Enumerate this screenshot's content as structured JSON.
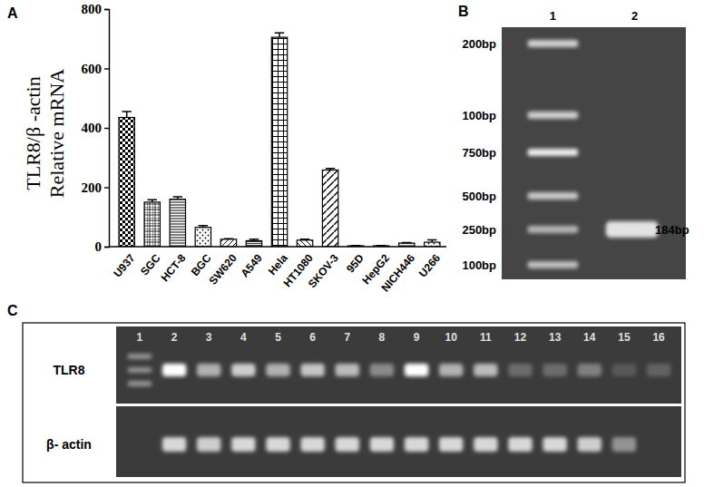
{
  "chart_data": {
    "type": "bar",
    "panel_label": "A",
    "y_label_lines": [
      "TLR8/β -actin",
      "Relative mRNA"
    ],
    "categories": [
      "U937",
      "SGC",
      "HCT-8",
      "BGC",
      "SW620",
      "A549",
      "Hela",
      "HT1080",
      "SKOV-3",
      "95D",
      "HepG2",
      "NICH446",
      "U266"
    ],
    "values": [
      435,
      150,
      160,
      65,
      25,
      20,
      705,
      22,
      258,
      3,
      3,
      12,
      15
    ],
    "errors": [
      20,
      8,
      8,
      6,
      2,
      5,
      15,
      3,
      5,
      1,
      1,
      2,
      8
    ],
    "color": "#000000",
    "ylim": [
      0,
      800
    ],
    "yticks": [
      0,
      200,
      400,
      600,
      800
    ],
    "grid": false
  },
  "gel_b": {
    "panel_label": "B",
    "lanes": [
      "1",
      "2"
    ],
    "ladder": [
      "200bp",
      "100bp",
      "750bp",
      "500bp",
      "250bp",
      "100bp"
    ],
    "band_label": "184bp"
  },
  "gel_c": {
    "panel_label": "C",
    "lanes": [
      "1",
      "2",
      "3",
      "4",
      "5",
      "6",
      "7",
      "8",
      "9",
      "10",
      "11",
      "12",
      "13",
      "14",
      "15",
      "16"
    ],
    "rows": [
      "TLR8",
      "β- actin"
    ]
  }
}
